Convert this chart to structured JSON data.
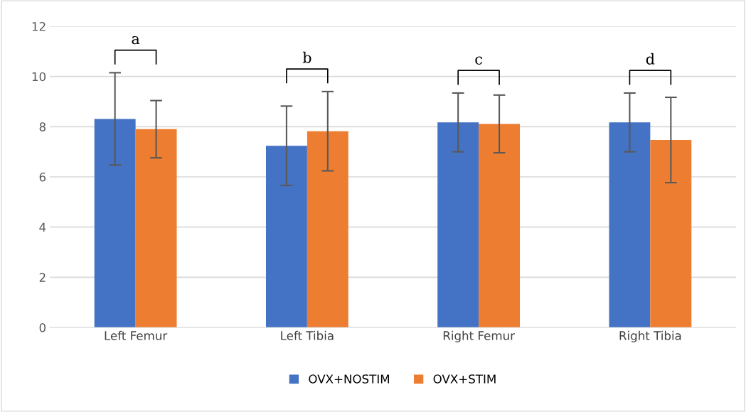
{
  "chart_data": {
    "type": "bar",
    "categories": [
      "Left Femur",
      "Left Tibia",
      "Right Femur",
      "Right Tibia"
    ],
    "series": [
      {
        "name": "OVX+NOSTIM",
        "color": "#4472c4",
        "values": [
          8.31,
          7.24,
          8.17,
          8.17
        ],
        "errors": [
          1.84,
          1.58,
          1.17,
          1.17
        ]
      },
      {
        "name": "OVX+STIM",
        "color": "#ed7d31",
        "values": [
          7.9,
          7.82,
          8.11,
          7.47
        ],
        "errors": [
          1.14,
          1.58,
          1.15,
          1.7
        ]
      }
    ],
    "ylim": [
      0,
      12
    ],
    "yticks": [
      0,
      2,
      4,
      6,
      8,
      10,
      12
    ],
    "grid": "y",
    "legend": "bottom",
    "annotations": [
      "a",
      "b",
      "c",
      "d"
    ]
  }
}
